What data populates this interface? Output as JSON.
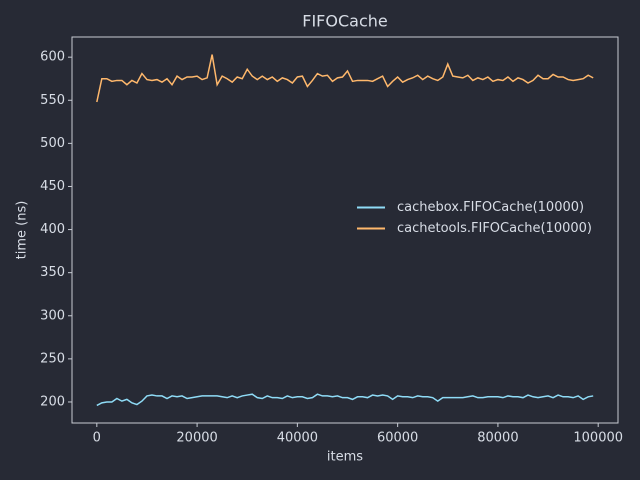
{
  "chart_data": {
    "type": "line",
    "title": "FIFOCache",
    "x_label": "items",
    "y_label": "time (ns)",
    "x": [
      0,
      1000,
      2000,
      3000,
      4000,
      5000,
      6000,
      7000,
      8000,
      9000,
      10000,
      11000,
      12000,
      13000,
      14000,
      15000,
      16000,
      17000,
      18000,
      19000,
      20000,
      21000,
      22000,
      23000,
      24000,
      25000,
      26000,
      27000,
      28000,
      29000,
      30000,
      31000,
      32000,
      33000,
      34000,
      35000,
      36000,
      37000,
      38000,
      39000,
      40000,
      41000,
      42000,
      43000,
      44000,
      45000,
      46000,
      47000,
      48000,
      49000,
      50000,
      51000,
      52000,
      53000,
      54000,
      55000,
      56000,
      57000,
      58000,
      59000,
      60000,
      61000,
      62000,
      63000,
      64000,
      65000,
      66000,
      67000,
      68000,
      69000,
      70000,
      71000,
      72000,
      73000,
      74000,
      75000,
      76000,
      77000,
      78000,
      79000,
      80000,
      81000,
      82000,
      83000,
      84000,
      85000,
      86000,
      87000,
      88000,
      89000,
      90000,
      91000,
      92000,
      93000,
      94000,
      95000,
      96000,
      97000,
      98000,
      99000
    ],
    "series": [
      {
        "name": "cachebox.FIFOCache(10000)",
        "color": "#8fdcf7",
        "values": [
          196,
          199,
          200,
          200,
          204,
          201,
          203,
          199,
          197,
          201,
          207,
          208,
          207,
          207,
          204,
          207,
          206,
          207,
          204,
          205,
          206,
          207,
          207,
          207,
          207,
          206,
          205,
          207,
          205,
          207,
          208,
          209,
          205,
          204,
          207,
          205,
          205,
          204,
          207,
          205,
          206,
          206,
          204,
          205,
          209,
          207,
          207,
          206,
          207,
          205,
          205,
          203,
          206,
          206,
          205,
          208,
          207,
          208,
          207,
          203,
          207,
          206,
          206,
          205,
          207,
          206,
          206,
          205,
          201,
          205,
          205,
          205,
          205,
          205,
          206,
          207,
          205,
          205,
          206,
          206,
          206,
          205,
          207,
          206,
          206,
          205,
          208,
          206,
          205,
          206,
          207,
          205,
          208,
          206,
          206,
          205,
          207,
          203,
          206,
          207
        ]
      },
      {
        "name": "cachetools.FIFOCache(10000)",
        "color": "#ffb86c",
        "values": [
          548,
          575,
          575,
          572,
          573,
          573,
          568,
          573,
          570,
          581,
          574,
          573,
          574,
          571,
          575,
          568,
          578,
          574,
          577,
          577,
          578,
          574,
          576,
          603,
          568,
          578,
          575,
          571,
          577,
          575,
          586,
          578,
          574,
          578,
          574,
          577,
          572,
          576,
          574,
          570,
          577,
          578,
          566,
          573,
          581,
          578,
          579,
          572,
          576,
          577,
          584,
          572,
          573,
          573,
          573,
          572,
          575,
          578,
          566,
          572,
          577,
          571,
          574,
          576,
          579,
          574,
          578,
          575,
          573,
          577,
          592,
          578,
          577,
          576,
          579,
          573,
          576,
          574,
          577,
          572,
          574,
          573,
          577,
          572,
          576,
          574,
          570,
          573,
          579,
          575,
          575,
          580,
          577,
          577,
          574,
          573,
          574,
          575,
          579,
          576
        ]
      }
    ],
    "xlim": [
      -4950,
      103950
    ],
    "ylim": [
      175.6,
      623.4
    ],
    "xticks": [
      0,
      20000,
      40000,
      60000,
      80000,
      100000
    ],
    "yticks": [
      200,
      250,
      300,
      350,
      400,
      450,
      500,
      550,
      600
    ],
    "grid": false,
    "legend": "center right"
  }
}
